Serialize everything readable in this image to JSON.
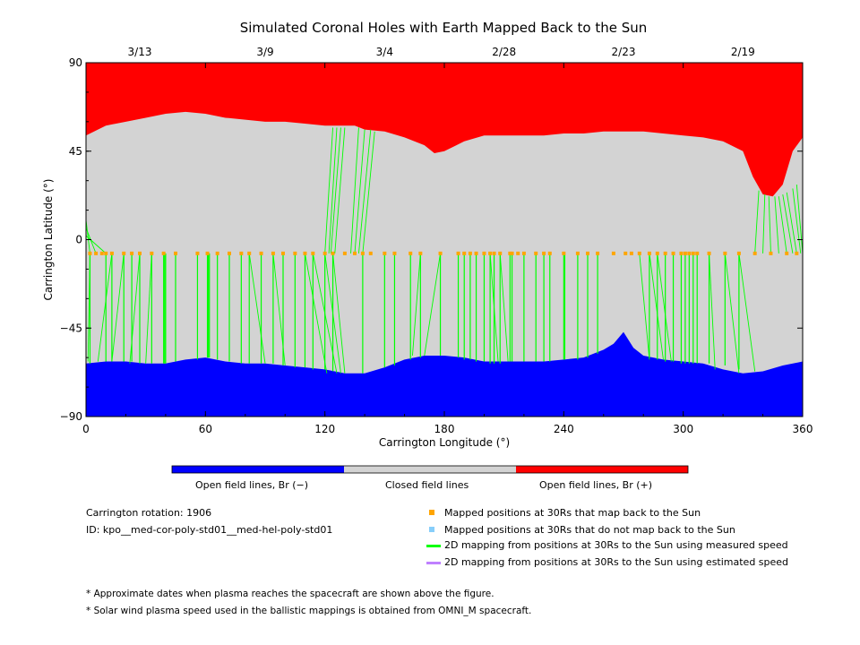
{
  "chart_data": {
    "type": "area",
    "title": "Simulated Coronal Holes with Earth Mapped Back to the Sun",
    "xlabel": "Carrington Longitude (°)",
    "ylabel": "Carrington Latitude (°)",
    "xlim": [
      0,
      360
    ],
    "ylim": [
      -90,
      90
    ],
    "x_ticks": [
      0,
      60,
      120,
      180,
      240,
      300,
      360
    ],
    "y_ticks": [
      -90,
      -45,
      0,
      45,
      90
    ],
    "top_axis_dates": [
      {
        "label": "3/13",
        "lon": 27
      },
      {
        "label": "3/9",
        "lon": 90
      },
      {
        "label": "3/4",
        "lon": 150
      },
      {
        "label": "2/28",
        "lon": 210
      },
      {
        "label": "2/23",
        "lon": 270
      },
      {
        "label": "2/19",
        "lon": 330
      }
    ],
    "north_boundary": {
      "lon": [
        0,
        10,
        20,
        30,
        40,
        50,
        60,
        70,
        80,
        90,
        100,
        110,
        120,
        125,
        130,
        135,
        140,
        150,
        160,
        170,
        175,
        180,
        190,
        200,
        210,
        220,
        230,
        240,
        250,
        260,
        270,
        280,
        290,
        300,
        310,
        320,
        330,
        335,
        340,
        345,
        350,
        355,
        360
      ],
      "lat": [
        53,
        58,
        60,
        62,
        64,
        65,
        64,
        62,
        61,
        60,
        60,
        59,
        58,
        58,
        58,
        58,
        56,
        55,
        52,
        48,
        44,
        45,
        50,
        53,
        53,
        53,
        53,
        54,
        54,
        55,
        55,
        55,
        54,
        53,
        52,
        50,
        45,
        32,
        23,
        22,
        28,
        45,
        52
      ]
    },
    "north_hole_lobe": {
      "lon": [
        330,
        332,
        335,
        340,
        345,
        350,
        352,
        353,
        350,
        345,
        340,
        336,
        332,
        330
      ],
      "lat": [
        40,
        32,
        28,
        23,
        22,
        24,
        30,
        40,
        48,
        50,
        50,
        48,
        44,
        40
      ]
    },
    "south_boundary": {
      "lon": [
        0,
        10,
        20,
        30,
        40,
        50,
        60,
        70,
        80,
        90,
        100,
        110,
        120,
        130,
        140,
        150,
        160,
        170,
        180,
        190,
        200,
        210,
        220,
        230,
        240,
        250,
        260,
        265,
        270,
        275,
        280,
        290,
        300,
        310,
        320,
        330,
        340,
        350,
        360
      ],
      "lat": [
        -63,
        -62,
        -62,
        -63,
        -63,
        -61,
        -60,
        -62,
        -63,
        -63,
        -64,
        -65,
        -66,
        -68,
        -68,
        -65,
        -61,
        -59,
        -59,
        -60,
        -62,
        -62,
        -62,
        -62,
        -61,
        -60,
        -56,
        -53,
        -47,
        -55,
        -59,
        -61,
        -62,
        -63,
        -66,
        -68,
        -67,
        -64,
        -62
      ]
    },
    "mapped_positions_lat": -7,
    "mapped_positions_lon": [
      2,
      5,
      8,
      10,
      13,
      19,
      23,
      27,
      33,
      39,
      45,
      56,
      61,
      66,
      72,
      78,
      82,
      88,
      94,
      99,
      105,
      110,
      114,
      120,
      124,
      130,
      135,
      139,
      143,
      150,
      155,
      163,
      168,
      178,
      187,
      190,
      193,
      196,
      200,
      203,
      205,
      208,
      213,
      214,
      217,
      220,
      226,
      230,
      233,
      240,
      247,
      252,
      257,
      265,
      271,
      274,
      278,
      283,
      287,
      291,
      295,
      299,
      301,
      303,
      305,
      307,
      313,
      321,
      328,
      336,
      344,
      352,
      357
    ],
    "field_lines_south": [
      {
        "lon": 2,
        "lat2": -63
      },
      {
        "lon": 10,
        "lat2": -62
      },
      {
        "lon": 13,
        "lat2": -62
      },
      {
        "lon": 19,
        "lat2": -62
      },
      {
        "lon": 23,
        "lat2": -62
      },
      {
        "lon": 27,
        "lat2": -63
      },
      {
        "lon": 33,
        "lat2": -63
      },
      {
        "lon": 39,
        "lat2": -63
      },
      {
        "lon": 39.5,
        "lat2": -63
      },
      {
        "lon": 40,
        "lat2": -63
      },
      {
        "lon": 45,
        "lat2": -62
      },
      {
        "lon": 56,
        "lat2": -61
      },
      {
        "lon": 61,
        "lat2": -60
      },
      {
        "lon": 61.5,
        "lat2": -60
      },
      {
        "lon": 62,
        "lat2": -60
      },
      {
        "lon": 66,
        "lat2": -61
      },
      {
        "lon": 72,
        "lat2": -62
      },
      {
        "lon": 78,
        "lat2": -63
      },
      {
        "lon": 82,
        "lat2": -63
      },
      {
        "lon": 88,
        "lat2": -63
      },
      {
        "lon": 94,
        "lat2": -63
      },
      {
        "lon": 99,
        "lat2": -64
      },
      {
        "lon": 105,
        "lat2": -65
      },
      {
        "lon": 110,
        "lat2": -65
      },
      {
        "lon": 114,
        "lat2": -66
      },
      {
        "lon": 120,
        "lat2": -66
      },
      {
        "lon": 124,
        "lat2": -67
      },
      {
        "lon": 139,
        "lat2": -68
      },
      {
        "lon": 150,
        "lat2": -65
      },
      {
        "lon": 155,
        "lat2": -64
      },
      {
        "lon": 163,
        "lat2": -61
      },
      {
        "lon": 168,
        "lat2": -60
      },
      {
        "lon": 178,
        "lat2": -59
      },
      {
        "lon": 187,
        "lat2": -60
      },
      {
        "lon": 190,
        "lat2": -61
      },
      {
        "lon": 193,
        "lat2": -61
      },
      {
        "lon": 196,
        "lat2": -62
      },
      {
        "lon": 200,
        "lat2": -62
      },
      {
        "lon": 203,
        "lat2": -63
      },
      {
        "lon": 205,
        "lat2": -63
      },
      {
        "lon": 208,
        "lat2": -63
      },
      {
        "lon": 213,
        "lat2": -62
      },
      {
        "lon": 214,
        "lat2": -62
      },
      {
        "lon": 220,
        "lat2": -62
      },
      {
        "lon": 226,
        "lat2": -62
      },
      {
        "lon": 230,
        "lat2": -62
      },
      {
        "lon": 233,
        "lat2": -62
      },
      {
        "lon": 240,
        "lat2": -61
      },
      {
        "lon": 240.5,
        "lat2": -61
      },
      {
        "lon": 247,
        "lat2": -61
      },
      {
        "lon": 252,
        "lat2": -60
      },
      {
        "lon": 257,
        "lat2": -58
      },
      {
        "lon": 283,
        "lat2": -60
      },
      {
        "lon": 287,
        "lat2": -61
      },
      {
        "lon": 291,
        "lat2": -62
      },
      {
        "lon": 295,
        "lat2": -62
      },
      {
        "lon": 299,
        "lat2": -63
      },
      {
        "lon": 301,
        "lat2": -63
      },
      {
        "lon": 303,
        "lat2": -63
      },
      {
        "lon": 305,
        "lat2": -63
      },
      {
        "lon": 307,
        "lat2": -63
      },
      {
        "lon": 313,
        "lat2": -63
      },
      {
        "lon": 321,
        "lat2": -64
      },
      {
        "lon": 328,
        "lat2": -66
      }
    ],
    "field_lines_south_slanted": [
      {
        "lon1": 2,
        "lon2": 1
      },
      {
        "lon1": 13,
        "lon2": 6
      },
      {
        "lon1": 19,
        "lon2": 13
      },
      {
        "lon1": 27,
        "lon2": 22
      },
      {
        "lon1": 33,
        "lon2": 30
      },
      {
        "lon1": 82,
        "lon2": 90
      },
      {
        "lon1": 94,
        "lon2": 100
      },
      {
        "lon1": 110,
        "lon2": 121
      },
      {
        "lon1": 114,
        "lon2": 126
      },
      {
        "lon1": 120,
        "lon2": 128
      },
      {
        "lon1": 124,
        "lon2": 130
      },
      {
        "lon1": 168,
        "lon2": 164
      },
      {
        "lon1": 178,
        "lon2": 170
      },
      {
        "lon1": 203,
        "lon2": 207
      },
      {
        "lon1": 208,
        "lon2": 212
      },
      {
        "lon1": 278,
        "lon2": 283
      },
      {
        "lon1": 283,
        "lon2": 290
      },
      {
        "lon1": 287,
        "lon2": 294
      },
      {
        "lon1": 313,
        "lon2": 316
      },
      {
        "lon1": 321,
        "lon2": 328
      },
      {
        "lon1": 328,
        "lon2": 336
      }
    ],
    "field_lines_north": [
      {
        "lon1": 120,
        "lon2": 124,
        "lat2": 57
      },
      {
        "lon1": 122,
        "lon2": 126,
        "lat2": 57
      },
      {
        "lon1": 123,
        "lon2": 128,
        "lat2": 57
      },
      {
        "lon1": 125,
        "lon2": 130,
        "lat2": 57
      },
      {
        "lon1": 133,
        "lon2": 137,
        "lat2": 57
      },
      {
        "lon1": 135,
        "lon2": 140,
        "lat2": 56
      },
      {
        "lon1": 137,
        "lon2": 143,
        "lat2": 56
      },
      {
        "lon1": 139,
        "lon2": 145,
        "lat2": 55
      },
      {
        "lon1": 0,
        "lon2": 0,
        "lat2": 12
      },
      {
        "lon1": 2,
        "lon2": 0,
        "lat2": 10
      },
      {
        "lon1": 5,
        "lon2": 0,
        "lat2": 6
      },
      {
        "lon1": 10,
        "lon2": 0,
        "lat2": 2
      },
      {
        "lon1": 336,
        "lon2": 338,
        "lat2": 25
      },
      {
        "lon1": 340,
        "lon2": 341,
        "lat2": 23
      },
      {
        "lon1": 344,
        "lon2": 343,
        "lat2": 22
      },
      {
        "lon1": 348,
        "lon2": 346,
        "lat2": 22
      },
      {
        "lon1": 352,
        "lon2": 348,
        "lat2": 22
      },
      {
        "lon1": 355,
        "lon2": 350,
        "lat2": 23
      },
      {
        "lon1": 357,
        "lon2": 352,
        "lat2": 24
      },
      {
        "lon1": 359,
        "lon2": 355,
        "lat2": 26
      },
      {
        "lon1": 360,
        "lon2": 357,
        "lat2": 28
      }
    ],
    "colorbar": [
      {
        "label": "Open field lines, Br (−)",
        "color": "#0000ff"
      },
      {
        "label": "Closed field lines",
        "color": "#d3d3d3"
      },
      {
        "label": "Open field lines, Br (+)",
        "color": "#ff0000"
      }
    ],
    "legend": [
      {
        "label": "Mapped positions at 30Rs that map back to the Sun",
        "color": "#ffa500",
        "kind": "square"
      },
      {
        "label": "Mapped positions at 30Rs that do not map back to the Sun",
        "color": "#87cefa",
        "kind": "square"
      },
      {
        "label": "2D mapping from positions at 30Rs to the Sun using measured speed",
        "color": "#00ff00",
        "kind": "line"
      },
      {
        "label": "2D mapping from positions at 30Rs to the Sun using estimated speed",
        "color": "#bf80ff",
        "kind": "line"
      }
    ]
  },
  "info": {
    "rotation": "Carrington rotation: 1906",
    "id": "ID: kpo__med-cor-poly-std01__med-hel-poly-std01"
  },
  "notes": [
    "* Approximate dates when plasma reaches the spacecraft are shown above the figure.",
    "* Solar wind plasma speed used in the ballistic mappings is obtained from OMNI_M spacecraft."
  ],
  "colors": {
    "closed": "#d3d3d3",
    "open_neg": "#0000ff",
    "open_pos": "#ff0000",
    "mapped": "#ffa500",
    "mapping_line": "#00ff00"
  }
}
